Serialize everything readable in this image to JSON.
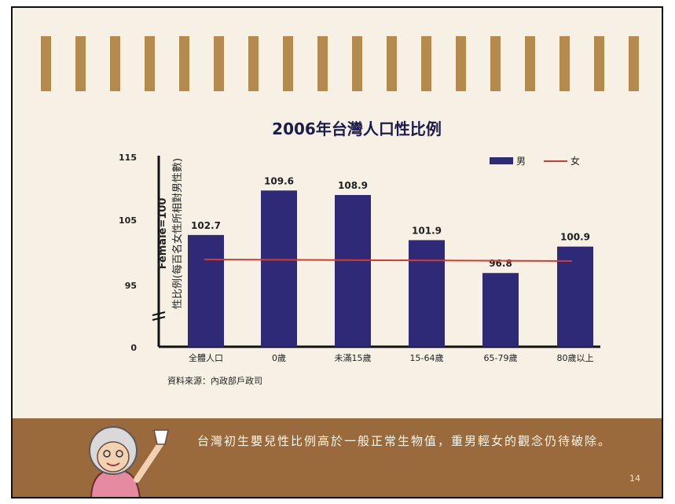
{
  "page": {
    "caption": "台灣初生嬰兒性比例高於一般正常生物值，重男輕女的觀念仍待破除。",
    "source": "資料來源：內政部戶政司",
    "page_number": "14"
  },
  "colors": {
    "paper": "#f6f1e4",
    "stripe": "#b48a4e",
    "band": "#9a6a3d",
    "bar": "#2e2a78",
    "line": "#d63a2f"
  },
  "chart_data": {
    "type": "bar",
    "title": "2006年台灣人口性比例",
    "ylabel": "Female=100",
    "ylabel_note": "性比例(每百名女性所相對男性數)",
    "categories": [
      "全體人口",
      "0歲",
      "未滿15歲",
      "15-64歲",
      "65-79歲",
      "80歲以上"
    ],
    "series": [
      {
        "name": "男",
        "values": [
          102.7,
          109.6,
          108.9,
          101.9,
          96.8,
          100.9
        ]
      }
    ],
    "reference_line": {
      "name": "女",
      "value": 100
    },
    "yticks": [
      "0",
      "95",
      "105",
      "115"
    ],
    "ylim": [
      90,
      115
    ],
    "axis_break": true,
    "legend_position": "top-right",
    "grid": false
  }
}
